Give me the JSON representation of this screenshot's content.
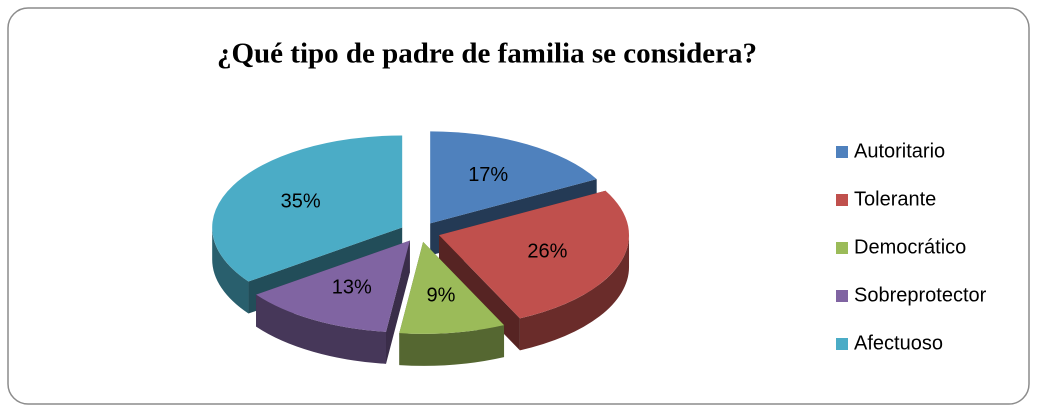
{
  "chart_data": {
    "type": "pie",
    "title": "¿Qué tipo de padre de familia se considera?",
    "categories": [
      "Autoritario",
      "Tolerante",
      "Democrático",
      "Sobreprotector",
      "Afectuoso"
    ],
    "values": [
      17,
      26,
      9,
      13,
      35
    ],
    "value_labels": [
      "17%",
      "26%",
      "9%",
      "13%",
      "35%"
    ],
    "colors": [
      "#4f81bd",
      "#c0504d",
      "#9bbb59",
      "#8064a2",
      "#4bacc6"
    ],
    "legend": "right"
  }
}
